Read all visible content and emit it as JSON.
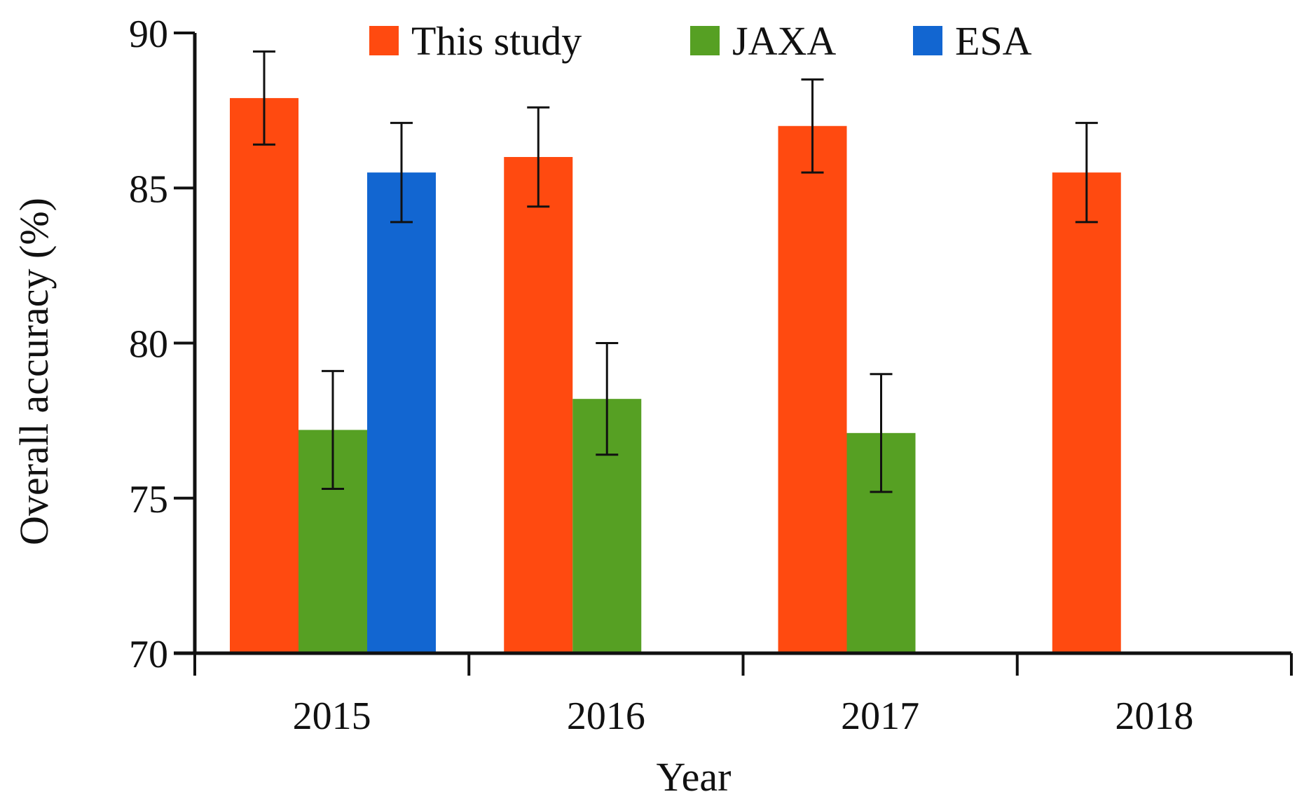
{
  "chart_data": {
    "type": "bar",
    "title": "",
    "xlabel": "Year",
    "ylabel": "Overall accuracy (%)",
    "ylim": [
      70,
      90
    ],
    "yticks": [
      70,
      75,
      80,
      85,
      90
    ],
    "categories": [
      "2015",
      "2016",
      "2017",
      "2018"
    ],
    "legend_position": "top",
    "series": [
      {
        "name": "This study",
        "color": "#FF4A10",
        "values": [
          87.9,
          86.0,
          87.0,
          85.5
        ],
        "errors": [
          1.5,
          1.6,
          1.5,
          1.6
        ]
      },
      {
        "name": "JAXA",
        "color": "#56A023",
        "values": [
          77.2,
          78.2,
          77.1,
          null
        ],
        "errors": [
          1.9,
          1.8,
          1.9,
          null
        ]
      },
      {
        "name": "ESA",
        "color": "#1266D1",
        "values": [
          85.5,
          null,
          null,
          null
        ],
        "errors": [
          1.6,
          null,
          null,
          null
        ]
      }
    ]
  }
}
